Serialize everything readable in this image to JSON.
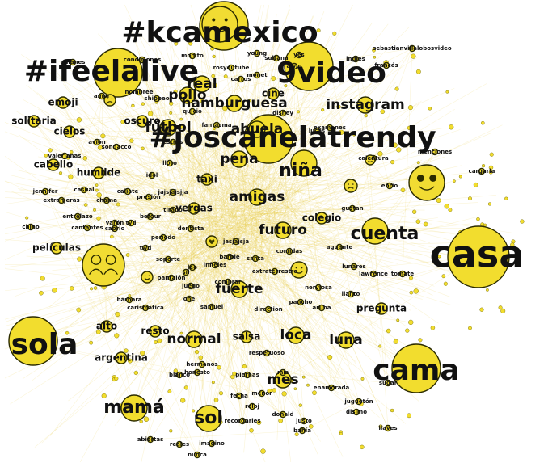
{
  "graph": {
    "node_color": "#f2dd2e",
    "edge_color": "#e8cf4a",
    "nodes": [
      {
        "label": "#kcamexico",
        "size": "xl"
      },
      {
        "label": "#ifeelalive",
        "size": "xl"
      },
      {
        "label": "9video",
        "size": "xl"
      },
      {
        "label": "#joscanelatrendy",
        "size": "xl"
      },
      {
        "label": "casa",
        "size": "xxl"
      },
      {
        "label": "cama",
        "size": "xl"
      },
      {
        "label": "sola",
        "size": "xl"
      },
      {
        "label": "mamá",
        "size": "l"
      },
      {
        "label": "sol",
        "size": "l"
      },
      {
        "label": "niña",
        "size": "l"
      },
      {
        "label": "cuenta",
        "size": "l"
      },
      {
        "label": "amigas",
        "size": "m"
      },
      {
        "label": "futuro",
        "size": "m"
      },
      {
        "label": "fuerte",
        "size": "m"
      },
      {
        "label": "normal",
        "size": "m"
      },
      {
        "label": "loca",
        "size": "m"
      },
      {
        "label": "luna",
        "size": "m"
      },
      {
        "label": "mes",
        "size": "m"
      },
      {
        "label": "pena",
        "size": "m"
      },
      {
        "label": "instagram",
        "size": "m"
      },
      {
        "label": "hamburguesa",
        "size": "m"
      },
      {
        "label": "pollo",
        "size": "m"
      },
      {
        "label": "real",
        "size": "m"
      },
      {
        "label": "fútbol",
        "size": "m"
      },
      {
        "label": "abuela",
        "size": "m"
      },
      {
        "label": "cine",
        "size": "s"
      },
      {
        "label": "emoji",
        "size": "s"
      },
      {
        "label": "oscuro",
        "size": "s"
      },
      {
        "label": "películas",
        "size": "s"
      },
      {
        "label": "pregunta",
        "size": "s"
      },
      {
        "label": "alto",
        "size": "s"
      },
      {
        "label": "resto",
        "size": "s"
      },
      {
        "label": "salsa",
        "size": "s"
      },
      {
        "label": "argentina",
        "size": "s"
      },
      {
        "label": "colegio",
        "size": "s"
      },
      {
        "label": "humilde",
        "size": "s"
      },
      {
        "label": "cabello",
        "size": "s"
      },
      {
        "label": "cielos",
        "size": "s"
      },
      {
        "label": "solitaria",
        "size": "s"
      },
      {
        "label": "taxi",
        "size": "s"
      },
      {
        "label": "vergas",
        "size": "s"
      },
      {
        "label": "periodo",
        "size": "xs"
      },
      {
        "label": "jasjajsja",
        "size": "xs"
      },
      {
        "label": "llanto",
        "size": "xs"
      },
      {
        "label": "aguante",
        "size": "xs"
      },
      {
        "label": "lunares",
        "size": "xs"
      },
      {
        "label": "lawrence",
        "size": "xs"
      },
      {
        "label": "tomate",
        "size": "xs"
      },
      {
        "label": "piernas",
        "size": "xs"
      },
      {
        "label": "hermanos",
        "size": "xs"
      },
      {
        "label": "blanco",
        "size": "xs"
      },
      {
        "label": "one",
        "size": "xs"
      },
      {
        "label": "sil",
        "size": "xs"
      },
      {
        "label": "leo",
        "size": "xs"
      },
      {
        "label": "samuel",
        "size": "xs"
      },
      {
        "label": "bárbara",
        "size": "xs"
      },
      {
        "label": "carismática",
        "size": "xs"
      },
      {
        "label": "aruba",
        "size": "xs"
      },
      {
        "label": "direction",
        "size": "xs"
      },
      {
        "label": "pancho",
        "size": "xs"
      },
      {
        "label": "nerviosa",
        "size": "xs"
      },
      {
        "label": "respetuoso",
        "size": "xs"
      },
      {
        "label": "comidas",
        "size": "xs"
      },
      {
        "label": "barbie",
        "size": "xs"
      },
      {
        "label": "santa",
        "size": "xs"
      },
      {
        "label": "infieles",
        "size": "xs"
      },
      {
        "label": "extraterrestre",
        "size": "xs"
      },
      {
        "label": "dentista",
        "size": "xs"
      },
      {
        "label": "soporte",
        "size": "xs"
      },
      {
        "label": "pantalón",
        "size": "xs"
      },
      {
        "label": "caprio",
        "size": "xs"
      },
      {
        "label": "twd",
        "size": "xs"
      },
      {
        "label": "tvd",
        "size": "xs"
      },
      {
        "label": "varón",
        "size": "xs"
      },
      {
        "label": "cantantes",
        "size": "xs"
      },
      {
        "label": "chino",
        "size": "xs"
      },
      {
        "label": "entrelazo",
        "size": "xs"
      },
      {
        "label": "extranjeras",
        "size": "xs"
      },
      {
        "label": "chama",
        "size": "xs"
      },
      {
        "label": "jennifer",
        "size": "xs"
      },
      {
        "label": "casual",
        "size": "xs"
      },
      {
        "label": "caliate",
        "size": "xs"
      },
      {
        "label": "presión",
        "size": "xs"
      },
      {
        "label": "jajsjajsjja",
        "size": "xs"
      },
      {
        "label": "befour",
        "size": "xs"
      },
      {
        "label": "tirado",
        "size": "xs"
      },
      {
        "label": "idol",
        "size": "xs"
      },
      {
        "label": "lloro",
        "size": "xs"
      },
      {
        "label": "valerianas",
        "size": "xs"
      },
      {
        "label": "avión",
        "size": "xs"
      },
      {
        "label": "amor",
        "size": "xs"
      },
      {
        "label": "nombree",
        "size": "xs"
      },
      {
        "label": "shippeo",
        "size": "xs"
      },
      {
        "label": "quicio",
        "size": "xs"
      },
      {
        "label": "fantasma",
        "size": "xs"
      },
      {
        "label": "disney",
        "size": "xs"
      },
      {
        "label": "monet",
        "size": "xs"
      },
      {
        "label": "young",
        "size": "xs"
      },
      {
        "label": "sebastianvillalobosvideo",
        "size": "xs"
      },
      {
        "label": "ingles",
        "size": "xs"
      },
      {
        "label": "francés",
        "size": "xs"
      },
      {
        "label": "galanes",
        "size": "xs"
      },
      {
        "label": "condiciones",
        "size": "xs"
      },
      {
        "label": "monito",
        "size": "xs"
      },
      {
        "label": "rosyoutube",
        "size": "xs"
      },
      {
        "label": "carros",
        "size": "xs"
      },
      {
        "label": "sultana",
        "size": "xs"
      },
      {
        "label": "alvin",
        "size": "xs"
      },
      {
        "label": "examenes",
        "size": "xs"
      },
      {
        "label": "lucas",
        "size": "xs"
      },
      {
        "label": "calentura",
        "size": "xs"
      },
      {
        "label": "menciones",
        "size": "xs"
      },
      {
        "label": "cargarla",
        "size": "xs"
      },
      {
        "label": "ebrio",
        "size": "xs"
      },
      {
        "label": "enamorada",
        "size": "xs"
      },
      {
        "label": "justo",
        "size": "xs"
      },
      {
        "label": "donald",
        "size": "xs"
      },
      {
        "label": "nunca",
        "size": "xs"
      },
      {
        "label": "reales",
        "size": "xs"
      },
      {
        "label": "abiertas",
        "size": "xs"
      },
      {
        "label": "recordarles",
        "size": "xs"
      },
      {
        "label": "imagino",
        "size": "xs"
      },
      {
        "label": "menor",
        "size": "xs"
      },
      {
        "label": "juguetón",
        "size": "xs"
      },
      {
        "label": "disimo",
        "size": "xs"
      },
      {
        "label": "bahía",
        "size": "xs"
      },
      {
        "label": "fecha",
        "size": "xs"
      },
      {
        "label": "reloj",
        "size": "xs"
      },
      {
        "label": "honesto",
        "size": "xs"
      },
      {
        "label": "sudar",
        "size": "xs"
      },
      {
        "label": "yes",
        "size": "xs"
      },
      {
        "label": "estrés",
        "size": "xs"
      },
      {
        "label": "sondacco",
        "size": "xs"
      },
      {
        "label": "juego",
        "size": "xs"
      },
      {
        "label": "comprar",
        "size": "xs"
      },
      {
        "label": "mis",
        "size": "xs"
      },
      {
        "label": "gustan",
        "size": "xs"
      },
      {
        "label": "llaves",
        "size": "xs"
      },
      {
        "label": "cuchillo",
        "size": "xs"
      }
    ],
    "icons": [
      {
        "name": "smiley-icon"
      },
      {
        "name": "smiley-icon"
      },
      {
        "name": "sad-face-icon"
      },
      {
        "name": "sad-face-icon"
      },
      {
        "name": "heart-icon"
      },
      {
        "name": "cool-face-icon"
      },
      {
        "name": "people-icon"
      },
      {
        "name": "cat-face-icon"
      },
      {
        "name": "smiley-icon"
      }
    ]
  }
}
